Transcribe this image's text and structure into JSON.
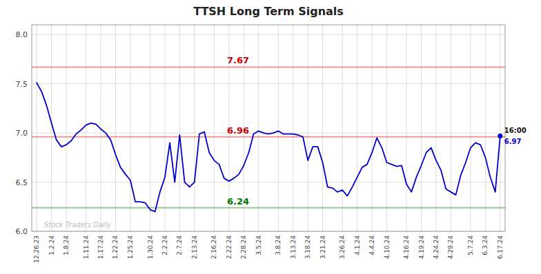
{
  "chart_data": {
    "type": "line",
    "title": "TTSH Long Term Signals",
    "color": "#0000cc",
    "grid": true,
    "ylim": [
      6.0,
      8.1
    ],
    "yticks": [
      {
        "value": 6.0,
        "label": "6.0"
      },
      6.5,
      {
        "value": 7.0,
        "label": "7.0"
      },
      7.5,
      {
        "value": 8.0,
        "label": "8.0"
      }
    ],
    "categories": [
      "12.26.23",
      null,
      null,
      "1.2.24",
      null,
      null,
      "1.8.24",
      null,
      null,
      null,
      "1.11.24",
      null,
      null,
      "1.17.24",
      null,
      null,
      "1.22.24",
      null,
      null,
      "1.25.24",
      null,
      null,
      null,
      "1.30.24",
      null,
      null,
      "2.2.24",
      null,
      null,
      "2.7.24",
      null,
      null,
      "2.13.24",
      null,
      null,
      null,
      "2.16.24",
      null,
      null,
      "2.22.24",
      null,
      null,
      "2.28.24",
      null,
      null,
      "3.5.24",
      null,
      null,
      null,
      "3.8.24",
      null,
      null,
      "3.13.24",
      null,
      null,
      "3.18.24",
      null,
      null,
      "3.21.24",
      null,
      null,
      null,
      "3.26.24",
      null,
      null,
      "4.1.24",
      null,
      null,
      "4.4.24",
      null,
      null,
      "4.10.24",
      null,
      null,
      null,
      "4.16.24",
      null,
      null,
      "4.19.24",
      null,
      null,
      "4.24.24",
      null,
      null,
      "4.29.24",
      null,
      null,
      null,
      "5.7.24",
      null,
      null,
      "6.3.24",
      null,
      null,
      "6.17.24"
    ],
    "values": [
      7.51,
      7.42,
      7.28,
      7.1,
      6.93,
      6.86,
      6.88,
      6.92,
      6.99,
      7.03,
      7.08,
      7.1,
      7.09,
      7.04,
      7.0,
      6.93,
      6.78,
      6.65,
      6.58,
      6.52,
      6.3,
      6.3,
      6.29,
      6.22,
      6.2,
      6.4,
      6.55,
      6.9,
      6.5,
      6.98,
      6.5,
      6.45,
      6.5,
      6.99,
      7.01,
      6.8,
      6.72,
      6.68,
      6.54,
      6.51,
      6.54,
      6.58,
      6.67,
      6.8,
      6.99,
      7.02,
      7.0,
      6.99,
      7.0,
      7.02,
      6.99,
      6.99,
      6.99,
      6.98,
      6.96,
      6.72,
      6.86,
      6.86,
      6.7,
      6.45,
      6.44,
      6.4,
      6.42,
      6.36,
      6.45,
      6.55,
      6.65,
      6.68,
      6.8,
      6.95,
      6.85,
      6.7,
      6.68,
      6.66,
      6.67,
      6.48,
      6.4,
      6.55,
      6.67,
      6.8,
      6.85,
      6.72,
      6.62,
      6.43,
      6.4,
      6.37,
      6.57,
      6.7,
      6.85,
      6.9,
      6.88,
      6.75,
      6.55,
      6.4,
      6.97
    ],
    "reference_lines": [
      {
        "value": 7.67,
        "label": "7.67",
        "color": "#cc0000"
      },
      {
        "value": 6.96,
        "label": "6.96",
        "color": "#cc0000"
      },
      {
        "value": 6.24,
        "label": "6.24",
        "color": "#007700"
      }
    ],
    "annotations": [
      {
        "text": "16:00",
        "color": "#111111"
      },
      {
        "text": "6.97",
        "color": "#0000cc"
      }
    ],
    "watermark": "Stock Traders Daily"
  }
}
